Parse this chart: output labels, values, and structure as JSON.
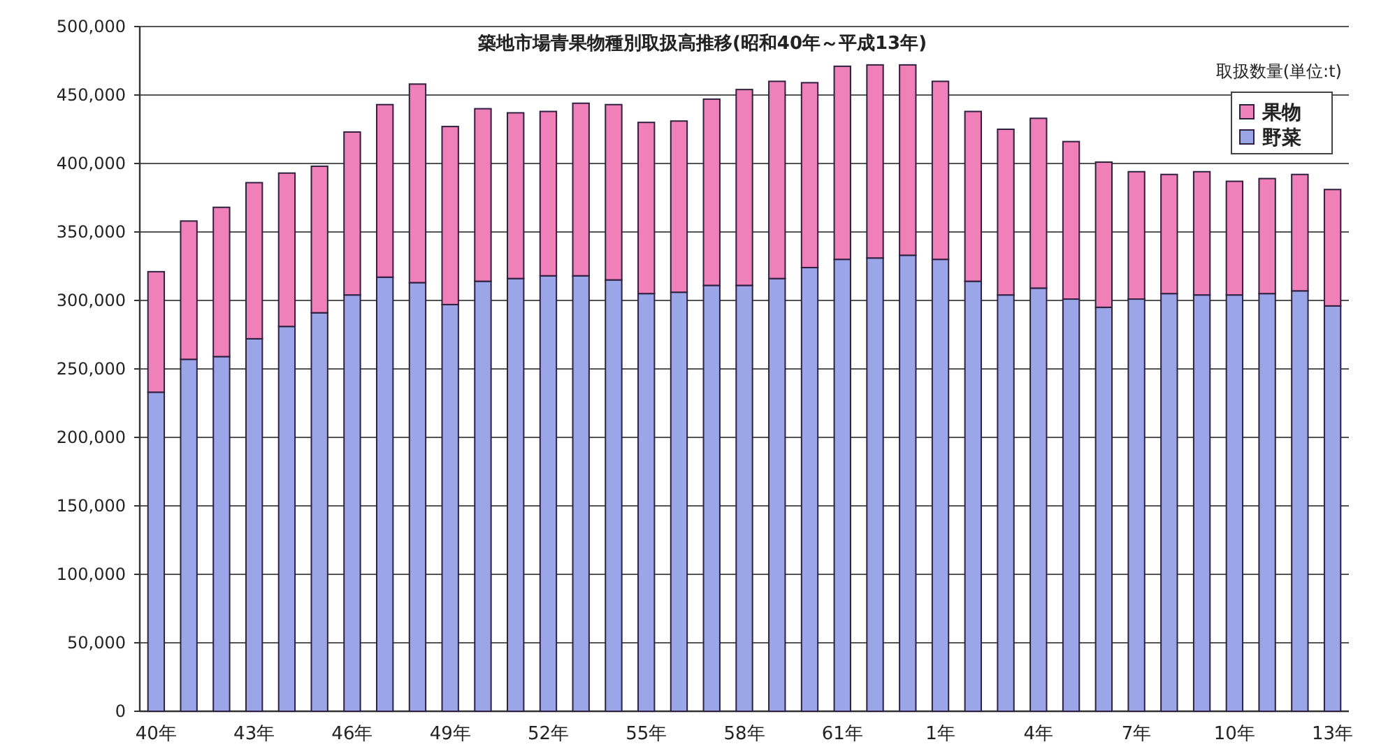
{
  "chart_data": {
    "type": "bar",
    "stacked": true,
    "title": "築地市場青果物種別取扱高推移(昭和40年～平成13年)",
    "annotations": [
      "取扱数量(単位:t)"
    ],
    "categories": [
      "40年",
      null,
      null,
      "43年",
      null,
      null,
      "46年",
      null,
      null,
      "49年",
      null,
      null,
      "52年",
      null,
      null,
      "55年",
      null,
      null,
      "58年",
      null,
      null,
      "61年",
      null,
      null,
      "1年",
      null,
      null,
      "4年",
      null,
      null,
      "7年",
      null,
      null,
      "10年",
      null,
      null,
      "13年"
    ],
    "series": [
      {
        "name": "野菜",
        "color": "#9aa6e8",
        "values": [
          233000,
          257000,
          259000,
          272000,
          281000,
          291000,
          304000,
          317000,
          313000,
          297000,
          314000,
          316000,
          318000,
          318000,
          315000,
          305000,
          306000,
          311000,
          311000,
          316000,
          324000,
          330000,
          331000,
          333000,
          330000,
          314000,
          304000,
          309000,
          301000,
          295000,
          301000,
          305000,
          304000,
          304000,
          305000,
          307000,
          296000
        ]
      },
      {
        "name": "果物",
        "color": "#f080b8",
        "values": [
          88000,
          101000,
          109000,
          114000,
          112000,
          107000,
          119000,
          126000,
          145000,
          130000,
          126000,
          121000,
          120000,
          126000,
          128000,
          125000,
          125000,
          136000,
          143000,
          144000,
          135000,
          141000,
          141000,
          139000,
          130000,
          124000,
          121000,
          124000,
          115000,
          106000,
          93000,
          87000,
          90000,
          83000,
          84000,
          85000,
          85000
        ]
      }
    ],
    "ylim": [
      0,
      500000
    ],
    "yticks": [
      0,
      {
        "value": 50000,
        "label": "50,000"
      },
      {
        "value": 100000,
        "label": "100,000"
      },
      {
        "value": 150000,
        "label": "150,000"
      },
      {
        "value": 200000,
        "label": "200,000"
      },
      {
        "value": 250000,
        "label": "250,000"
      },
      {
        "value": 300000,
        "label": "300,000"
      },
      {
        "value": 350000,
        "label": "350,000"
      },
      {
        "value": 400000,
        "label": "400,000"
      },
      {
        "value": 450000,
        "label": "450,000"
      },
      {
        "value": 500000,
        "label": "500,000"
      }
    ],
    "grid": "y",
    "legend": "top right"
  }
}
